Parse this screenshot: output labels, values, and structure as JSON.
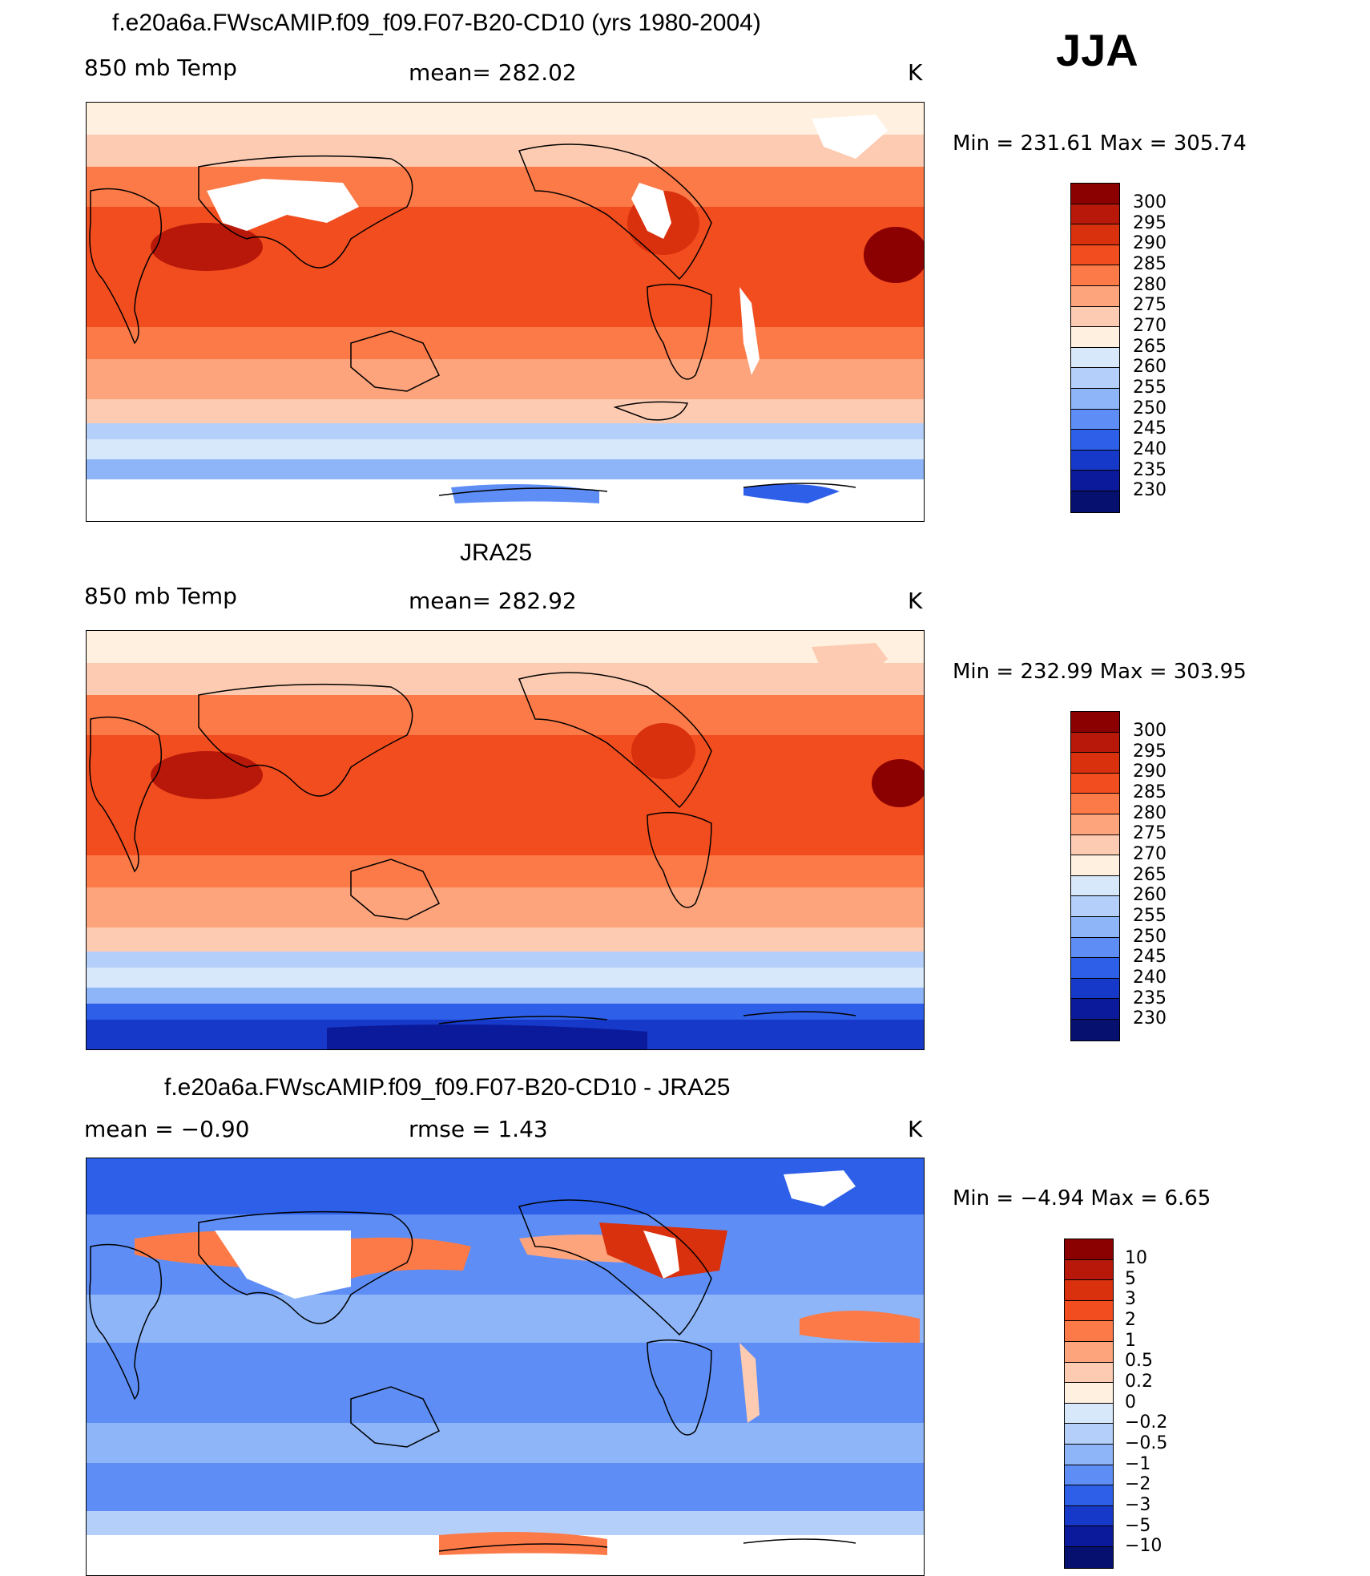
{
  "season": "JJA",
  "panels": [
    {
      "id": "model",
      "title": "f.e20a6a.FWscAMIP.f09_f09.F07-B20-CD10 (yrs 1980-2004)",
      "left_label": "850 mb Temp",
      "center_label": "mean= 282.02",
      "units": "K",
      "min_max": "Min  =  231.61  Max  =  305.74",
      "colorbar_labels": [
        "300",
        "295",
        "290",
        "285",
        "280",
        "275",
        "270",
        "265",
        "260",
        "255",
        "250",
        "245",
        "240",
        "235",
        "230"
      ],
      "colorbar_colors": [
        "#8b0000",
        "#b8180a",
        "#d9300d",
        "#f24d1f",
        "#fc7a48",
        "#fda47c",
        "#fdcbb1",
        "#fff0e0",
        "#d8e8fb",
        "#b4d0fa",
        "#8db5f8",
        "#5e8ef5",
        "#2e5fe8",
        "#1739c9",
        "#0a1a9a",
        "#06106e"
      ]
    },
    {
      "id": "obs",
      "title": "JRA25",
      "left_label": "850 mb Temp",
      "center_label": "mean= 282.92",
      "units": "K",
      "min_max": "Min  =  232.99  Max  =  303.95",
      "colorbar_labels": [
        "300",
        "295",
        "290",
        "285",
        "280",
        "275",
        "270",
        "265",
        "260",
        "255",
        "250",
        "245",
        "240",
        "235",
        "230"
      ],
      "colorbar_colors": [
        "#8b0000",
        "#b8180a",
        "#d9300d",
        "#f24d1f",
        "#fc7a48",
        "#fda47c",
        "#fdcbb1",
        "#fff0e0",
        "#d8e8fb",
        "#b4d0fa",
        "#8db5f8",
        "#5e8ef5",
        "#2e5fe8",
        "#1739c9",
        "#0a1a9a",
        "#06106e"
      ]
    },
    {
      "id": "diff",
      "title": "f.e20a6a.FWscAMIP.f09_f09.F07-B20-CD10 - JRA25",
      "left_label": "mean =    −0.90",
      "center_label": "rmse =     1.43",
      "units": "K",
      "min_max": "Min  =   −4.94  Max  =      6.65",
      "colorbar_labels": [
        "10",
        "5",
        "3",
        "2",
        "1",
        "0.5",
        "0.2",
        "0",
        "−0.2",
        "−0.5",
        "−1",
        "−2",
        "−3",
        "−5",
        "−10"
      ],
      "colorbar_colors": [
        "#8b0000",
        "#b8180a",
        "#d9300d",
        "#f24d1f",
        "#fc7a48",
        "#fda47c",
        "#fdcbb1",
        "#fff0e0",
        "#d8e8fb",
        "#b4d0fa",
        "#8db5f8",
        "#5e8ef5",
        "#2e5fe8",
        "#1739c9",
        "#0a1a9a",
        "#06106e"
      ]
    }
  ]
}
